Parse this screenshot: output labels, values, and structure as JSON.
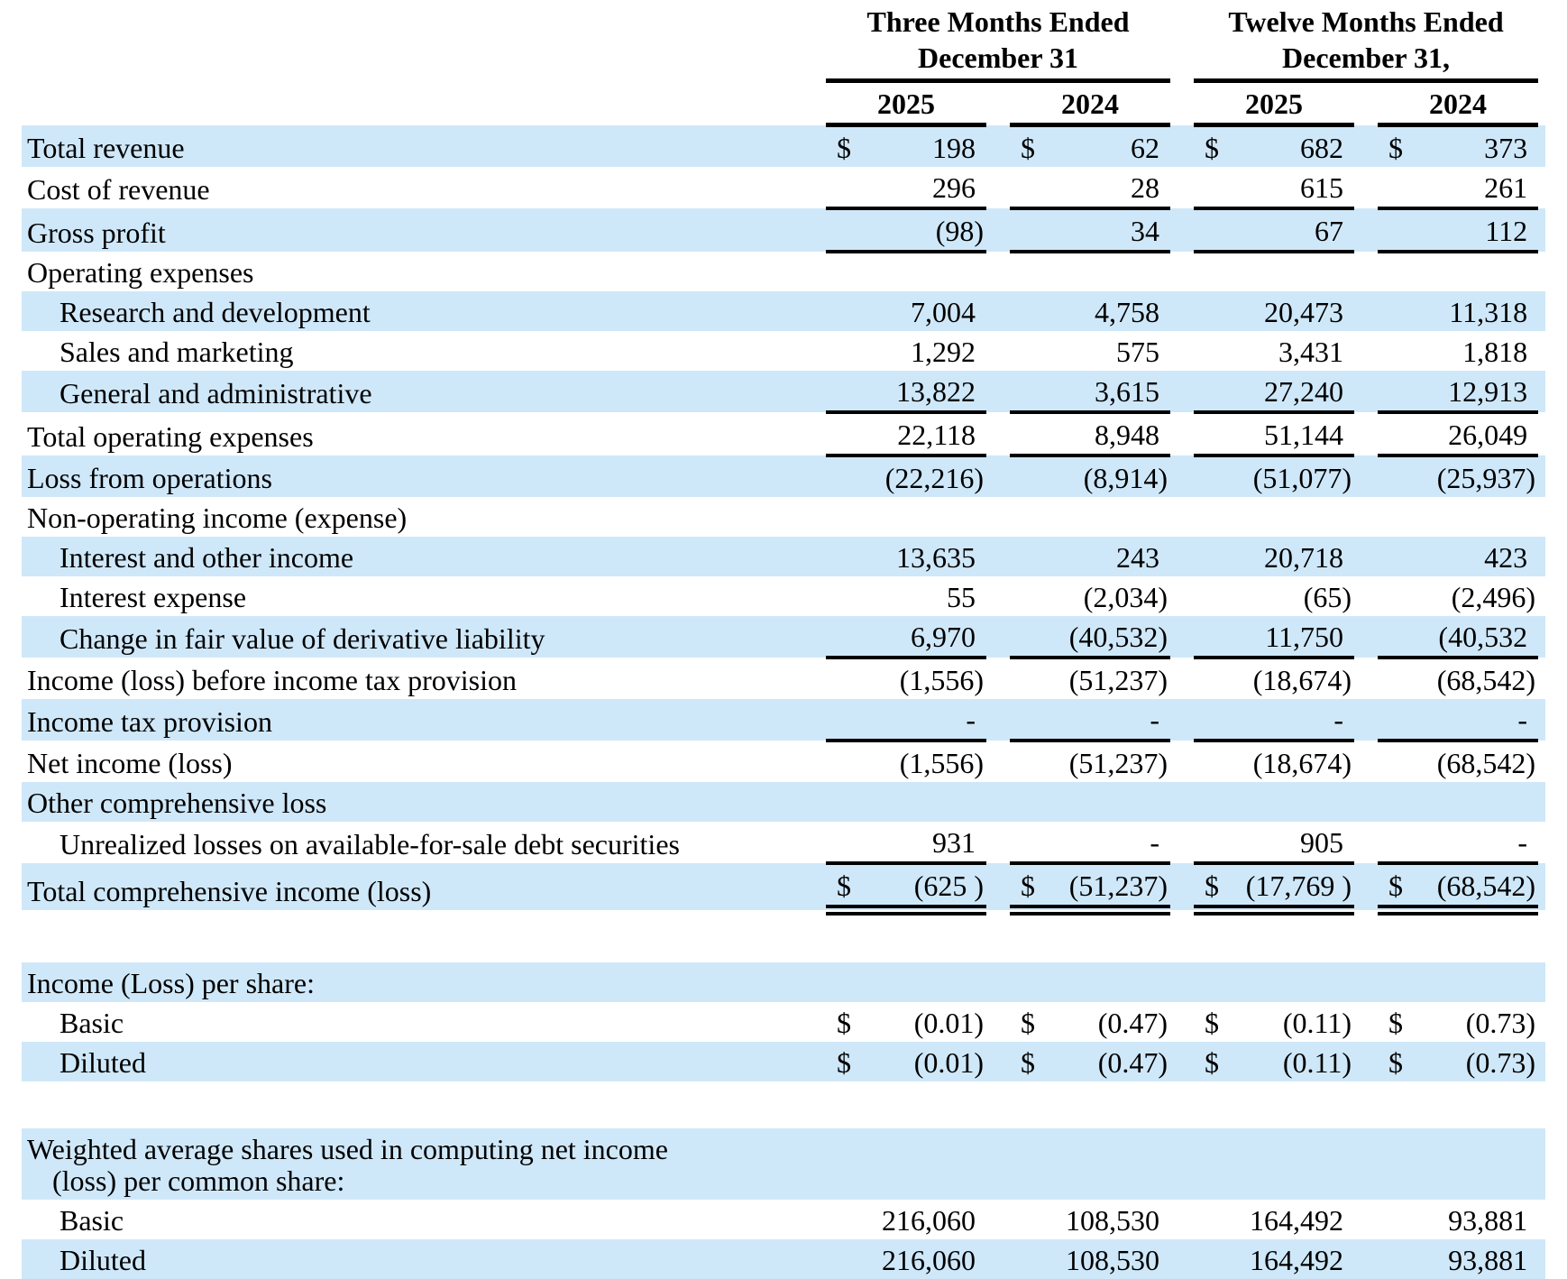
{
  "colors": {
    "row_stripe": "#cfe8f9",
    "text": "#000000",
    "rule": "#000000"
  },
  "table": {
    "header": {
      "groups": [
        {
          "line1": "Three Months Ended",
          "line2": "December 31",
          "years": [
            "2025",
            "2024"
          ]
        },
        {
          "line1": "Twelve Months Ended",
          "line2": "December 31,",
          "years": [
            "2025",
            "2024"
          ]
        }
      ]
    },
    "rows": [
      {
        "label": "Total revenue",
        "shade": true,
        "dollar": "$",
        "values": [
          "198",
          "62",
          "682",
          "373"
        ]
      },
      {
        "label": "Cost of revenue",
        "values": [
          "296",
          "28",
          "615",
          "261"
        ],
        "u": "s"
      },
      {
        "label": "Gross profit",
        "shade": true,
        "values": [
          "(98)",
          "34",
          "67",
          "112"
        ],
        "u": "s"
      },
      {
        "label": "Operating expenses"
      },
      {
        "label": "Research and development",
        "indent": true,
        "shade": true,
        "values": [
          "7,004",
          "4,758",
          "20,473",
          "11,318"
        ]
      },
      {
        "label": "Sales and marketing",
        "indent": true,
        "values": [
          "1,292",
          "575",
          "3,431",
          "1,818"
        ]
      },
      {
        "label": "General and administrative",
        "indent": true,
        "shade": true,
        "values": [
          "13,822",
          "3,615",
          "27,240",
          "12,913"
        ],
        "u": "s"
      },
      {
        "label": "Total operating expenses",
        "values": [
          "22,118",
          "8,948",
          "51,144",
          "26,049"
        ],
        "u": "s"
      },
      {
        "label": "Loss from operations",
        "shade": true,
        "values": [
          "(22,216)",
          "(8,914)",
          "(51,077)",
          "(25,937)"
        ]
      },
      {
        "label": "Non-operating income (expense)"
      },
      {
        "label": "Interest and other income",
        "indent": true,
        "shade": true,
        "values": [
          "13,635",
          "243",
          "20,718",
          "423"
        ]
      },
      {
        "label": "Interest expense",
        "indent": true,
        "values": [
          "55",
          "(2,034)",
          "(65)",
          "(2,496)"
        ]
      },
      {
        "label": "Change in fair value of derivative liability",
        "indent": true,
        "shade": true,
        "values": [
          "6,970",
          "(40,532)",
          "11,750",
          "(40,532"
        ],
        "u": "s"
      },
      {
        "label": "Income (loss) before income tax provision",
        "values": [
          "(1,556)",
          "(51,237)",
          "(18,674)",
          "(68,542)"
        ]
      },
      {
        "label": "Income tax provision",
        "shade": true,
        "values": [
          "-",
          "-",
          "-",
          "-"
        ],
        "u": "s"
      },
      {
        "label": "Net income (loss)",
        "values": [
          "(1,556)",
          "(51,237)",
          "(18,674)",
          "(68,542)"
        ]
      },
      {
        "label": "Other comprehensive loss",
        "shade": true
      },
      {
        "label": "Unrealized losses on available-for-sale debt securities",
        "indent": true,
        "values": [
          "931",
          "-",
          "905",
          "-"
        ],
        "u": "s"
      },
      {
        "label": "Total comprehensive income (loss)",
        "shade": true,
        "dollar": "$",
        "values": [
          "(625 )",
          "(51,237)",
          "(17,769 )",
          "(68,542)"
        ],
        "u": "d"
      },
      {
        "spacer": true
      },
      {
        "label": "Income (Loss) per share:",
        "shade": true
      },
      {
        "label": "Basic",
        "indent": true,
        "dollar": "$",
        "values": [
          "(0.01)",
          "(0.47)",
          "(0.11)",
          "(0.73)"
        ]
      },
      {
        "label": "Diluted",
        "indent": true,
        "shade": true,
        "dollar": "$",
        "values": [
          "(0.01)",
          "(0.47)",
          "(0.11)",
          "(0.73)"
        ]
      },
      {
        "spacer": true
      },
      {
        "label": "Weighted average shares used in computing net income",
        "label2": "(loss) per common share:",
        "shade": true
      },
      {
        "label": "Basic",
        "indent": true,
        "values": [
          "216,060",
          "108,530",
          "164,492",
          "93,881"
        ]
      },
      {
        "label": "Diluted",
        "indent": true,
        "shade": true,
        "values": [
          "216,060",
          "108,530",
          "164,492",
          "93,881"
        ]
      }
    ]
  }
}
